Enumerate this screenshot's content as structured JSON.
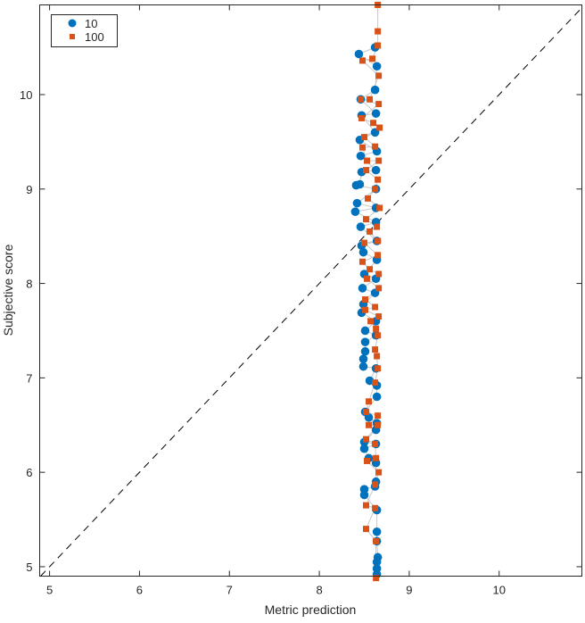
{
  "chart_data": {
    "type": "scatter",
    "title": "",
    "xlabel": "Metric prediction",
    "ylabel": "Subjective score",
    "xlim": [
      4.89,
      10.92
    ],
    "ylim": [
      4.9,
      10.95
    ],
    "xticks": [
      5,
      6,
      7,
      8,
      9,
      10
    ],
    "yticks": [
      5,
      6,
      7,
      8,
      9,
      10
    ],
    "grid": false,
    "legend_placement": "top-left",
    "reference_line": {
      "type": "y=x",
      "style": "dashed",
      "color": "#000000"
    },
    "connector_color": "#c8c8c8",
    "series": [
      {
        "name": "10",
        "marker": "circle",
        "color": "#0072BD",
        "points": [
          [
            8.44,
            10.43
          ],
          [
            8.62,
            10.5
          ],
          [
            8.64,
            10.3
          ],
          [
            8.46,
            9.95
          ],
          [
            8.62,
            10.05
          ],
          [
            8.47,
            9.78
          ],
          [
            8.63,
            9.8
          ],
          [
            8.45,
            9.52
          ],
          [
            8.62,
            9.6
          ],
          [
            8.46,
            9.35
          ],
          [
            8.64,
            9.4
          ],
          [
            8.47,
            9.18
          ],
          [
            8.63,
            9.2
          ],
          [
            8.41,
            9.04
          ],
          [
            8.45,
            9.05
          ],
          [
            8.63,
            9.0
          ],
          [
            8.4,
            8.76
          ],
          [
            8.42,
            8.85
          ],
          [
            8.63,
            8.8
          ],
          [
            8.46,
            8.6
          ],
          [
            8.63,
            8.65
          ],
          [
            8.47,
            8.4
          ],
          [
            8.64,
            8.45
          ],
          [
            8.49,
            8.33
          ],
          [
            8.64,
            8.25
          ],
          [
            8.5,
            8.1
          ],
          [
            8.63,
            8.05
          ],
          [
            8.48,
            7.95
          ],
          [
            8.62,
            7.9
          ],
          [
            8.49,
            7.78
          ],
          [
            8.47,
            7.69
          ],
          [
            8.63,
            7.6
          ],
          [
            8.51,
            7.5
          ],
          [
            8.63,
            7.45
          ],
          [
            8.51,
            7.38
          ],
          [
            8.51,
            7.28
          ],
          [
            8.49,
            7.2
          ],
          [
            8.49,
            7.12
          ],
          [
            8.63,
            7.1
          ],
          [
            8.56,
            6.97
          ],
          [
            8.64,
            6.92
          ],
          [
            8.64,
            6.8
          ],
          [
            8.51,
            6.64
          ],
          [
            8.55,
            6.58
          ],
          [
            8.64,
            6.52
          ],
          [
            8.63,
            6.45
          ],
          [
            8.5,
            6.32
          ],
          [
            8.5,
            6.25
          ],
          [
            8.63,
            6.3
          ],
          [
            8.55,
            6.15
          ],
          [
            8.63,
            6.1
          ],
          [
            8.63,
            5.9
          ],
          [
            8.62,
            5.85
          ],
          [
            8.5,
            5.82
          ],
          [
            8.5,
            5.76
          ],
          [
            8.64,
            5.6
          ],
          [
            8.64,
            5.37
          ],
          [
            8.64,
            5.27
          ],
          [
            8.65,
            5.1
          ],
          [
            8.64,
            5.05
          ],
          [
            8.64,
            4.98
          ],
          [
            8.64,
            4.92
          ]
        ]
      },
      {
        "name": "100",
        "marker": "square",
        "color": "#D95319",
        "points": [
          [
            8.65,
            10.95
          ],
          [
            8.65,
            10.67
          ],
          [
            8.59,
            10.38
          ],
          [
            8.65,
            10.52
          ],
          [
            8.48,
            10.36
          ],
          [
            8.66,
            10.2
          ],
          [
            8.56,
            9.95
          ],
          [
            8.46,
            9.95
          ],
          [
            8.66,
            9.9
          ],
          [
            8.47,
            9.75
          ],
          [
            8.6,
            9.7
          ],
          [
            8.67,
            9.65
          ],
          [
            8.5,
            9.55
          ],
          [
            8.62,
            9.45
          ],
          [
            8.48,
            9.44
          ],
          [
            8.53,
            9.3
          ],
          [
            8.66,
            9.3
          ],
          [
            8.52,
            9.2
          ],
          [
            8.65,
            9.1
          ],
          [
            8.62,
            9.0
          ],
          [
            8.54,
            8.9
          ],
          [
            8.67,
            8.8
          ],
          [
            8.52,
            8.68
          ],
          [
            8.64,
            8.6
          ],
          [
            8.56,
            8.55
          ],
          [
            8.65,
            8.45
          ],
          [
            8.5,
            8.43
          ],
          [
            8.65,
            8.3
          ],
          [
            8.48,
            8.23
          ],
          [
            8.56,
            8.15
          ],
          [
            8.66,
            8.1
          ],
          [
            8.53,
            8.05
          ],
          [
            8.66,
            7.95
          ],
          [
            8.51,
            7.83
          ],
          [
            8.62,
            7.75
          ],
          [
            8.51,
            7.72
          ],
          [
            8.66,
            7.65
          ],
          [
            8.57,
            7.6
          ],
          [
            8.63,
            7.52
          ],
          [
            8.65,
            7.45
          ],
          [
            8.62,
            7.3
          ],
          [
            8.64,
            7.23
          ],
          [
            8.65,
            7.1
          ],
          [
            8.62,
            6.95
          ],
          [
            8.55,
            6.75
          ],
          [
            8.65,
            6.6
          ],
          [
            8.52,
            6.64
          ],
          [
            8.55,
            6.5
          ],
          [
            8.65,
            6.5
          ],
          [
            8.52,
            6.35
          ],
          [
            8.62,
            6.3
          ],
          [
            8.63,
            6.15
          ],
          [
            8.53,
            6.12
          ],
          [
            8.66,
            6.0
          ],
          [
            8.62,
            5.87
          ],
          [
            8.52,
            5.65
          ],
          [
            8.62,
            5.62
          ],
          [
            8.52,
            5.4
          ],
          [
            8.63,
            5.27
          ],
          [
            8.63,
            4.88
          ]
        ]
      }
    ]
  }
}
